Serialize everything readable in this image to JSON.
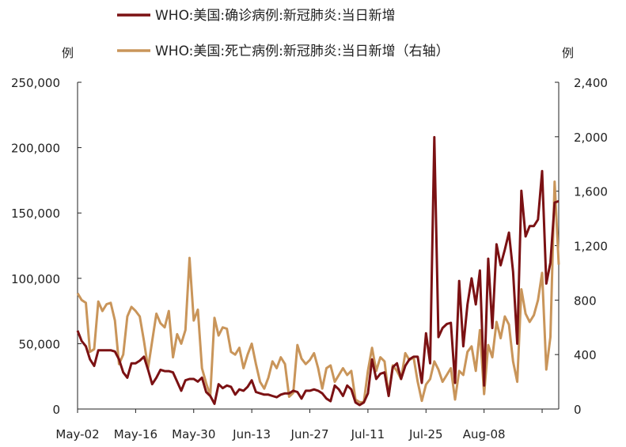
{
  "chart_data": {
    "type": "line",
    "x_tick_labels": [
      "May-02",
      "May-16",
      "May-30",
      "Jun-13",
      "Jun-27",
      "Jul-11",
      "Jul-25",
      "Aug-08"
    ],
    "x_start_label": "May-02",
    "left_unit": "例",
    "right_unit": "例",
    "left_ylim": [
      0,
      250000
    ],
    "right_ylim": [
      0,
      2400
    ],
    "left_ticks": [
      "0",
      "50,000",
      "100,000",
      "150,000",
      "200,000",
      "250,000"
    ],
    "right_ticks": [
      "0",
      "400",
      "800",
      "1,200",
      "1,600",
      "2,000",
      "2,400"
    ],
    "legend_position": "top",
    "grid": false,
    "series": [
      {
        "name": "WHO:美国:确诊病例:新冠肺炎:当日新增",
        "axis": "left",
        "color": "#7b1113",
        "values": [
          60000,
          52000,
          48000,
          38000,
          33000,
          45000,
          45000,
          45000,
          45000,
          44000,
          38000,
          28000,
          24000,
          35000,
          35000,
          37000,
          40000,
          30000,
          19000,
          24000,
          30000,
          29000,
          29000,
          28000,
          21000,
          14000,
          22000,
          23000,
          23000,
          21000,
          24000,
          13000,
          10000,
          4000,
          19000,
          16000,
          18000,
          17000,
          11000,
          15000,
          14000,
          17000,
          22000,
          13000,
          12000,
          11000,
          11000,
          10000,
          9000,
          11000,
          12000,
          12000,
          14000,
          13000,
          8000,
          14000,
          14000,
          15000,
          14000,
          12000,
          8000,
          6000,
          18000,
          15000,
          10000,
          18000,
          15000,
          5000,
          3000,
          5000,
          12000,
          38000,
          23000,
          27000,
          28000,
          10000,
          32000,
          35000,
          23000,
          33000,
          38000,
          40000,
          40000,
          20000,
          58000,
          35000,
          208000,
          55000,
          62000,
          65000,
          66000,
          20000,
          98000,
          48000,
          80000,
          100000,
          80000,
          106000,
          18000,
          115000,
          62000,
          126000,
          110000,
          122000,
          135000,
          105000,
          50000,
          167000,
          132000,
          140000,
          140000,
          145000,
          182000,
          96000,
          112000,
          158000,
          159000
        ]
      },
      {
        "name": "WHO:美国:死亡病例:新冠肺炎:当日新增（右轴）",
        "axis": "right",
        "color": "#c9955a",
        "values": [
          850,
          800,
          780,
          420,
          440,
          790,
          720,
          770,
          780,
          650,
          330,
          400,
          680,
          750,
          720,
          680,
          500,
          300,
          500,
          700,
          630,
          600,
          720,
          380,
          550,
          480,
          580,
          1110,
          650,
          730,
          300,
          190,
          100,
          670,
          540,
          600,
          590,
          420,
          400,
          450,
          300,
          400,
          480,
          330,
          200,
          150,
          230,
          350,
          300,
          380,
          330,
          90,
          120,
          470,
          370,
          330,
          360,
          410,
          300,
          150,
          300,
          320,
          200,
          250,
          300,
          250,
          280,
          70,
          50,
          50,
          280,
          450,
          280,
          380,
          350,
          100,
          320,
          280,
          220,
          410,
          360,
          380,
          200,
          60,
          180,
          220,
          350,
          290,
          200,
          250,
          300,
          70,
          280,
          250,
          420,
          460,
          280,
          580,
          110,
          470,
          380,
          640,
          520,
          680,
          620,
          350,
          200,
          880,
          700,
          640,
          690,
          800,
          1000,
          290,
          530,
          1670,
          1060
        ]
      }
    ]
  }
}
